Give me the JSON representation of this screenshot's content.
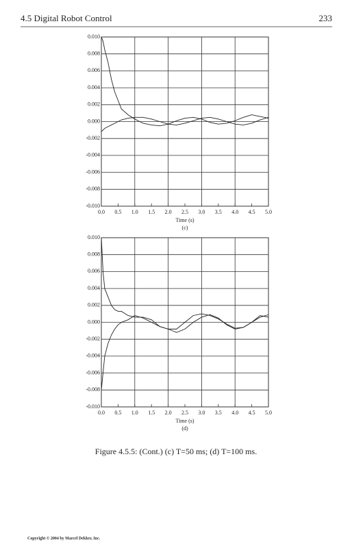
{
  "header": {
    "section": "4.5 Digital Robot Control",
    "page": "233"
  },
  "chart_data": [
    {
      "type": "line",
      "xlabel": "Time (s)",
      "caption": "(c)",
      "x": [
        0,
        0.05,
        0.1,
        0.2,
        0.3,
        0.4,
        0.5,
        0.6,
        0.8,
        1.0,
        1.25,
        1.5,
        1.75,
        2.0,
        2.25,
        2.5,
        2.75,
        3.0,
        3.25,
        3.5,
        3.75,
        4.0,
        4.25,
        4.5,
        4.75,
        5.0
      ],
      "series": [
        {
          "color": "#222222",
          "values": [
            0.01,
            0.0095,
            0.0085,
            0.007,
            0.005,
            0.0035,
            0.0025,
            0.0015,
            0.0008,
            0.0003,
            -0.0002,
            -0.0004,
            -0.0005,
            -0.0003,
            0.0001,
            0.0004,
            0.0005,
            0.0003,
            -0.0001,
            -0.0003,
            -0.0002,
            0.0001,
            0.0005,
            0.0008,
            0.0006,
            0.0004
          ]
        },
        {
          "color": "#222222",
          "values": [
            -0.0012,
            -0.001,
            -0.0008,
            -0.0006,
            -0.0004,
            -0.0002,
            0,
            0.0002,
            0.0004,
            0.0005,
            0.0005,
            0.0003,
            0,
            -0.0003,
            -0.0004,
            -0.0002,
            0.0001,
            0.0004,
            0.0005,
            0.0003,
            0,
            -0.0003,
            -0.0004,
            -0.0002,
            0.0002,
            0.0005
          ]
        }
      ],
      "xlim": [
        0,
        5
      ],
      "ylim": [
        -0.01,
        0.01
      ],
      "xticks": [
        {
          "value": 0,
          "label": "0.0"
        },
        0.5,
        {
          "value": 1,
          "label": "1.0"
        },
        1.5,
        {
          "value": 2,
          "label": "2.0"
        },
        2.5,
        {
          "value": 3,
          "label": "3.0"
        },
        3.5,
        {
          "value": 4,
          "label": "4.0"
        },
        4.5,
        {
          "value": 5,
          "label": "5.0"
        }
      ],
      "yticks": [
        {
          "value": -0.01,
          "label": "-0.010"
        },
        {
          "value": -0.008,
          "label": "-0.008"
        },
        {
          "value": -0.006,
          "label": "-0.006"
        },
        {
          "value": -0.004,
          "label": "-0.004"
        },
        {
          "value": -0.002,
          "label": "-0.002"
        },
        {
          "value": 0,
          "label": "0.000"
        },
        {
          "value": 0.002,
          "label": "0.002"
        },
        {
          "value": 0.004,
          "label": "0.004"
        },
        {
          "value": 0.006,
          "label": "0.006"
        },
        {
          "value": 0.008,
          "label": "0.008"
        },
        {
          "value": 0.01,
          "label": "0.010"
        }
      ],
      "grid": true
    },
    {
      "type": "line",
      "xlabel": "Time (s)",
      "caption": "(d)",
      "x": [
        0,
        0.05,
        0.1,
        0.2,
        0.3,
        0.4,
        0.5,
        0.6,
        0.8,
        1.0,
        1.25,
        1.5,
        1.75,
        2.0,
        2.25,
        2.5,
        2.75,
        3.0,
        3.25,
        3.5,
        3.75,
        4.0,
        4.25,
        4.5,
        4.75,
        5.0
      ],
      "series": [
        {
          "color": "#222222",
          "values": [
            0.01,
            0.006,
            0.004,
            0.003,
            0.002,
            0.0015,
            0.0013,
            0.0013,
            0.0008,
            0.0006,
            0.0006,
            0.0003,
            -0.0005,
            -0.0008,
            -0.0008,
            0,
            0.0008,
            0.001,
            0.0008,
            0.0004,
            -0.0002,
            -0.0007,
            -0.0006,
            0,
            0.0006,
            0.0009
          ]
        },
        {
          "color": "#222222",
          "values": [
            -0.008,
            -0.006,
            -0.004,
            -0.0025,
            -0.0015,
            -0.0008,
            -0.0003,
            0,
            0.0003,
            0.0008,
            0.0005,
            0,
            -0.0005,
            -0.0008,
            -0.0012,
            -0.0008,
            0,
            0.0006,
            0.0009,
            0.0005,
            -0.0003,
            -0.0008,
            -0.0006,
            0,
            0.0008,
            0.0006
          ]
        }
      ],
      "xlim": [
        0,
        5
      ],
      "ylim": [
        -0.01,
        0.01
      ],
      "xticks": [
        {
          "value": 0,
          "label": "0.0"
        },
        0.5,
        {
          "value": 1,
          "label": "1.0"
        },
        1.5,
        {
          "value": 2,
          "label": "2.0"
        },
        2.5,
        {
          "value": 3,
          "label": "3.0"
        },
        3.5,
        {
          "value": 4,
          "label": "4.0"
        },
        4.5,
        {
          "value": 5,
          "label": "5.0"
        }
      ],
      "yticks": [
        {
          "value": -0.01,
          "label": "-0.010"
        },
        {
          "value": -0.008,
          "label": "-0.008"
        },
        {
          "value": -0.006,
          "label": "-0.006"
        },
        {
          "value": -0.004,
          "label": "-0.004"
        },
        {
          "value": -0.002,
          "label": "-0.002"
        },
        {
          "value": 0,
          "label": "0.000"
        },
        {
          "value": 0.002,
          "label": "0.002"
        },
        {
          "value": 0.004,
          "label": "0.004"
        },
        {
          "value": 0.006,
          "label": "0.006"
        },
        {
          "value": 0.008,
          "label": "0.008"
        },
        {
          "value": 0.01,
          "label": "0.010"
        }
      ],
      "grid": true
    }
  ],
  "figure_caption": "Figure 4.5.5: (Cont.) (c) T=50 ms; (d) T=100 ms.",
  "footer": "Copyright © 2004 by Marcel Dekker, Inc."
}
